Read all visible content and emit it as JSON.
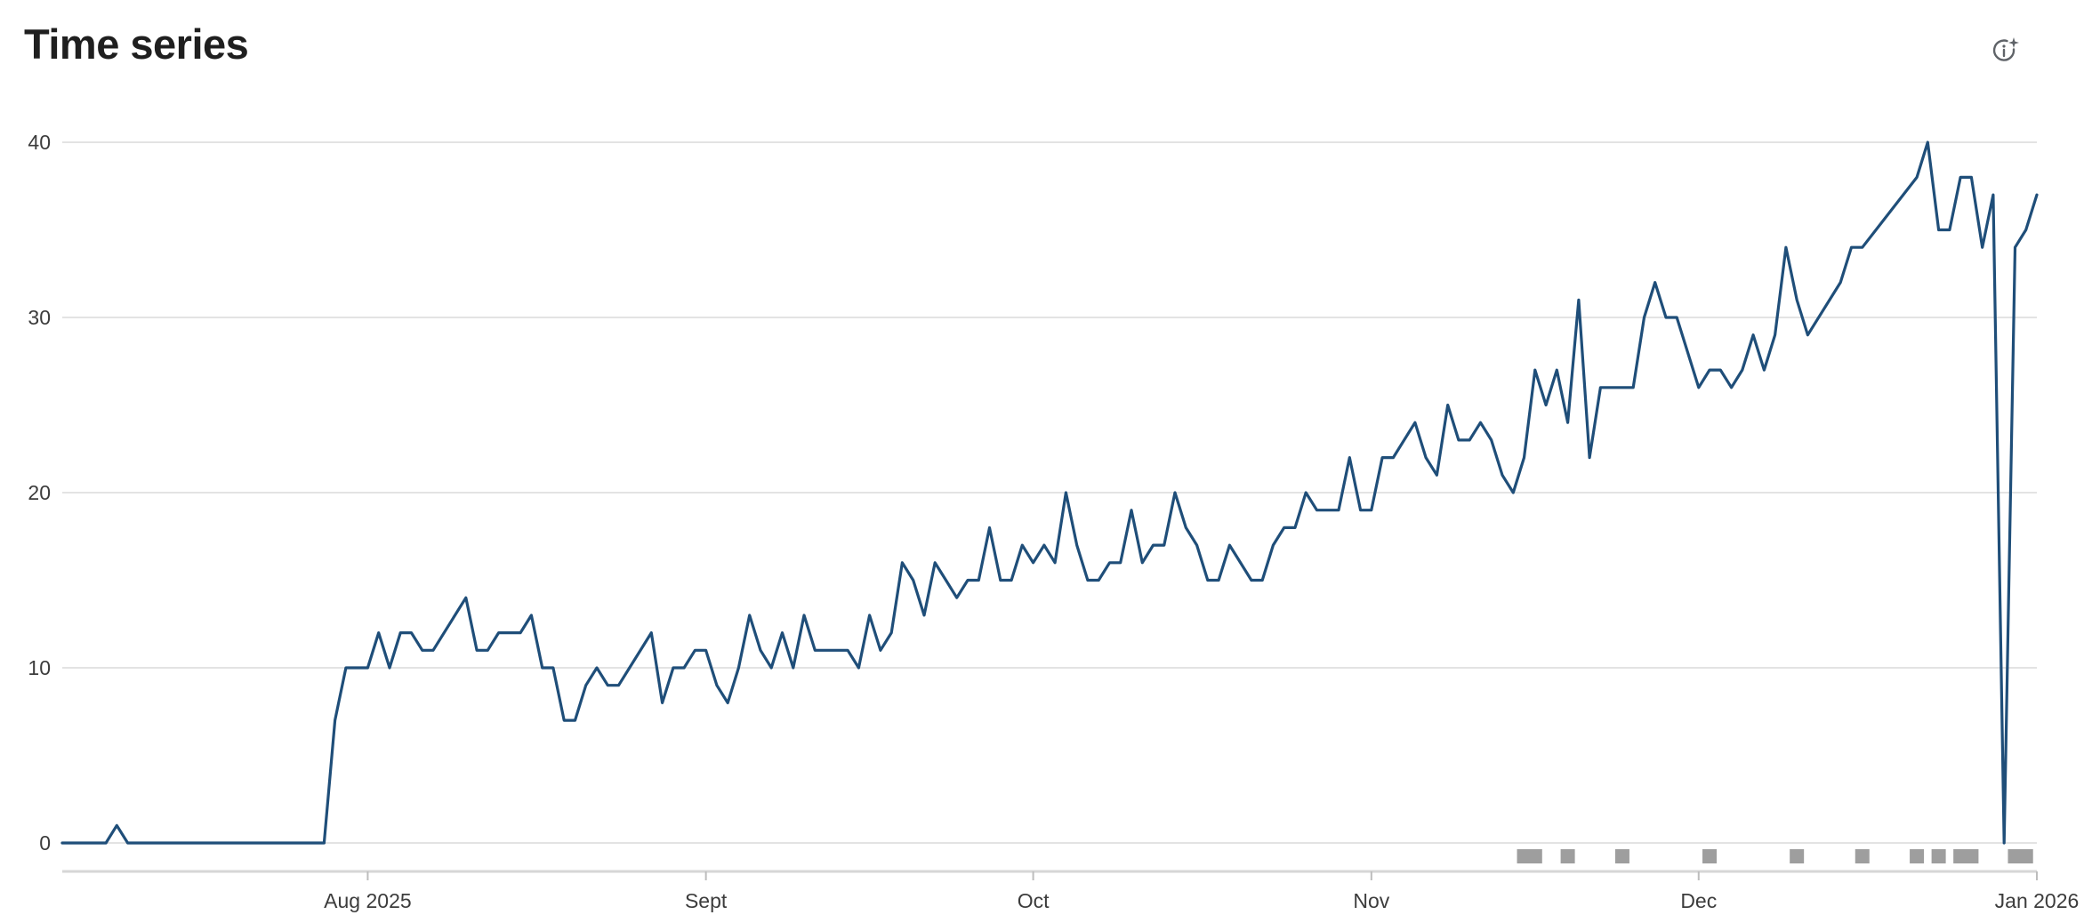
{
  "header": {
    "title": "Time series",
    "info_icon": "info-sparkle-icon"
  },
  "colors": {
    "line": "#1f4e79",
    "grid": "#e3e3e3",
    "axis": "#d6d6d6",
    "marker": "#9e9e9e"
  },
  "chart_data": {
    "type": "line",
    "title": "Time series",
    "xlabel": "",
    "ylabel": "",
    "ylim": [
      0,
      40
    ],
    "yticks": [
      0,
      10,
      20,
      30,
      40
    ],
    "xlim": [
      "2025-07-04",
      "2026-01-01"
    ],
    "xticks": [
      {
        "date": "2025-08-01",
        "label": "Aug 2025"
      },
      {
        "date": "2025-09-01",
        "label": "Sept"
      },
      {
        "date": "2025-10-01",
        "label": "Oct"
      },
      {
        "date": "2025-11-01",
        "label": "Nov"
      },
      {
        "date": "2025-12-01",
        "label": "Dec"
      },
      {
        "date": "2026-01-01",
        "label": "Jan 2026"
      }
    ],
    "grid": true,
    "legend": "none",
    "series": [
      {
        "points": [
          [
            "2025-07-04",
            0
          ],
          [
            "2025-07-08",
            0
          ],
          [
            "2025-07-09",
            1
          ],
          [
            "2025-07-10",
            0
          ],
          [
            "2025-07-28",
            0
          ],
          [
            "2025-07-29",
            7
          ],
          [
            "2025-07-30",
            10
          ],
          [
            "2025-07-31",
            10
          ],
          [
            "2025-08-01",
            10
          ],
          [
            "2025-08-02",
            12
          ],
          [
            "2025-08-03",
            10
          ],
          [
            "2025-08-04",
            12
          ],
          [
            "2025-08-05",
            12
          ],
          [
            "2025-08-06",
            11
          ],
          [
            "2025-08-07",
            11
          ],
          [
            "2025-08-10",
            14
          ],
          [
            "2025-08-11",
            11
          ],
          [
            "2025-08-12",
            11
          ],
          [
            "2025-08-13",
            12
          ],
          [
            "2025-08-14",
            12
          ],
          [
            "2025-08-15",
            12
          ],
          [
            "2025-08-16",
            13
          ],
          [
            "2025-08-17",
            10
          ],
          [
            "2025-08-18",
            10
          ],
          [
            "2025-08-19",
            7
          ],
          [
            "2025-08-20",
            7
          ],
          [
            "2025-08-21",
            9
          ],
          [
            "2025-08-22",
            10
          ],
          [
            "2025-08-23",
            9
          ],
          [
            "2025-08-24",
            9
          ],
          [
            "2025-08-27",
            12
          ],
          [
            "2025-08-28",
            8
          ],
          [
            "2025-08-29",
            10
          ],
          [
            "2025-08-30",
            10
          ],
          [
            "2025-08-31",
            11
          ],
          [
            "2025-09-01",
            11
          ],
          [
            "2025-09-02",
            9
          ],
          [
            "2025-09-03",
            8
          ],
          [
            "2025-09-04",
            10
          ],
          [
            "2025-09-05",
            13
          ],
          [
            "2025-09-06",
            11
          ],
          [
            "2025-09-07",
            10
          ],
          [
            "2025-09-08",
            12
          ],
          [
            "2025-09-09",
            10
          ],
          [
            "2025-09-10",
            13
          ],
          [
            "2025-09-11",
            11
          ],
          [
            "2025-09-12",
            11
          ],
          [
            "2025-09-13",
            11
          ],
          [
            "2025-09-14",
            11
          ],
          [
            "2025-09-15",
            10
          ],
          [
            "2025-09-16",
            13
          ],
          [
            "2025-09-17",
            11
          ],
          [
            "2025-09-18",
            12
          ],
          [
            "2025-09-19",
            16
          ],
          [
            "2025-09-20",
            15
          ],
          [
            "2025-09-21",
            13
          ],
          [
            "2025-09-22",
            16
          ],
          [
            "2025-09-23",
            15
          ],
          [
            "2025-09-24",
            14
          ],
          [
            "2025-09-25",
            15
          ],
          [
            "2025-09-26",
            15
          ],
          [
            "2025-09-27",
            18
          ],
          [
            "2025-09-28",
            15
          ],
          [
            "2025-09-29",
            15
          ],
          [
            "2025-09-30",
            17
          ],
          [
            "2025-10-01",
            16
          ],
          [
            "2025-10-02",
            17
          ],
          [
            "2025-10-03",
            16
          ],
          [
            "2025-10-04",
            20
          ],
          [
            "2025-10-05",
            17
          ],
          [
            "2025-10-06",
            15
          ],
          [
            "2025-10-07",
            15
          ],
          [
            "2025-10-08",
            16
          ],
          [
            "2025-10-09",
            16
          ],
          [
            "2025-10-10",
            19
          ],
          [
            "2025-10-11",
            16
          ],
          [
            "2025-10-12",
            17
          ],
          [
            "2025-10-13",
            17
          ],
          [
            "2025-10-14",
            20
          ],
          [
            "2025-10-15",
            18
          ],
          [
            "2025-10-16",
            17
          ],
          [
            "2025-10-17",
            15
          ],
          [
            "2025-10-18",
            15
          ],
          [
            "2025-10-19",
            17
          ],
          [
            "2025-10-21",
            15
          ],
          [
            "2025-10-22",
            15
          ],
          [
            "2025-10-23",
            17
          ],
          [
            "2025-10-24",
            18
          ],
          [
            "2025-10-25",
            18
          ],
          [
            "2025-10-26",
            20
          ],
          [
            "2025-10-27",
            19
          ],
          [
            "2025-10-28",
            19
          ],
          [
            "2025-10-29",
            19
          ],
          [
            "2025-10-30",
            22
          ],
          [
            "2025-10-31",
            19
          ],
          [
            "2025-11-01",
            19
          ],
          [
            "2025-11-02",
            22
          ],
          [
            "2025-11-03",
            22
          ],
          [
            "2025-11-05",
            24
          ],
          [
            "2025-11-06",
            22
          ],
          [
            "2025-11-07",
            21
          ],
          [
            "2025-11-08",
            25
          ],
          [
            "2025-11-09",
            23
          ],
          [
            "2025-11-10",
            23
          ],
          [
            "2025-11-11",
            24
          ],
          [
            "2025-11-12",
            23
          ],
          [
            "2025-11-13",
            21
          ],
          [
            "2025-11-14",
            20
          ],
          [
            "2025-11-15",
            22
          ],
          [
            "2025-11-16",
            27
          ],
          [
            "2025-11-17",
            25
          ],
          [
            "2025-11-18",
            27
          ],
          [
            "2025-11-19",
            24
          ],
          [
            "2025-11-20",
            31
          ],
          [
            "2025-11-21",
            22
          ],
          [
            "2025-11-22",
            26
          ],
          [
            "2025-11-25",
            26
          ],
          [
            "2025-11-26",
            30
          ],
          [
            "2025-11-27",
            32
          ],
          [
            "2025-11-28",
            30
          ],
          [
            "2025-11-29",
            30
          ],
          [
            "2025-12-01",
            26
          ],
          [
            "2025-12-02",
            27
          ],
          [
            "2025-12-03",
            27
          ],
          [
            "2025-12-04",
            26
          ],
          [
            "2025-12-05",
            27
          ],
          [
            "2025-12-06",
            29
          ],
          [
            "2025-12-07",
            27
          ],
          [
            "2025-12-08",
            29
          ],
          [
            "2025-12-09",
            34
          ],
          [
            "2025-12-10",
            31
          ],
          [
            "2025-12-11",
            29
          ],
          [
            "2025-12-14",
            32
          ],
          [
            "2025-12-15",
            34
          ],
          [
            "2025-12-16",
            34
          ],
          [
            "2025-12-21",
            38
          ],
          [
            "2025-12-22",
            40
          ],
          [
            "2025-12-23",
            35
          ],
          [
            "2025-12-24",
            35
          ],
          [
            "2025-12-25",
            38
          ],
          [
            "2025-12-26",
            38
          ],
          [
            "2025-12-27",
            34
          ],
          [
            "2025-12-28",
            37
          ],
          [
            "2025-12-29",
            0
          ],
          [
            "2025-12-30",
            34
          ],
          [
            "2025-12-31",
            35
          ],
          [
            "2026-01-01",
            37
          ]
        ]
      }
    ],
    "markers": [
      "2025-11-15",
      "2025-11-16",
      "2025-11-19",
      "2025-11-24",
      "2025-12-02",
      "2025-12-10",
      "2025-12-16",
      "2025-12-21",
      "2025-12-23",
      "2025-12-25",
      "2025-12-26",
      "2025-12-30",
      "2025-12-31"
    ]
  }
}
